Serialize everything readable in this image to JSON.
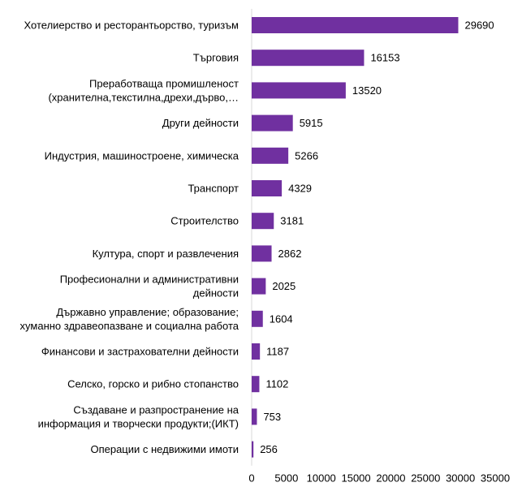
{
  "chart_data": {
    "type": "bar",
    "orientation": "horizontal",
    "categories": [
      [
        "Хотелиерство и ресторантьорство, туризъм"
      ],
      [
        "Търговия"
      ],
      [
        "Преработваща промишленост",
        "(хранителна,текстилна,дрехи,дърво,…"
      ],
      [
        "Други дейности"
      ],
      [
        "Индустрия, машиностроене, химическа"
      ],
      [
        "Транспорт"
      ],
      [
        "Строителство"
      ],
      [
        "Култура, спорт и развлечения"
      ],
      [
        "Професионални и административни",
        "дейности"
      ],
      [
        "Държавно управление; образование;",
        "хуманно здравеопазване и социална работа"
      ],
      [
        "Финансови и застрахователни дейности"
      ],
      [
        "Селско, горско и рибно стопанство"
      ],
      [
        "Създаване и разпространение на",
        "информация и творчески продукти;(ИКТ)"
      ],
      [
        "Операции с недвижими имоти"
      ]
    ],
    "values": [
      29690,
      16153,
      13520,
      5915,
      5266,
      4329,
      3181,
      2862,
      2025,
      1604,
      1187,
      1102,
      753,
      256
    ],
    "value_labels": [
      "29690",
      "16153",
      "13520",
      "5915",
      "5266",
      "4329",
      "3181",
      "2862",
      "2025",
      "1604",
      "1187",
      "1102",
      "753",
      "256"
    ],
    "x_ticks": [
      "0",
      "5000",
      "10000",
      "15000",
      "20000",
      "25000",
      "30000",
      "35000"
    ],
    "xlim": [
      0,
      35000
    ],
    "bar_color": "#7030A0",
    "axis_color": "#D9D9D9",
    "grid": false,
    "legend": false,
    "title": "",
    "xlabel": "",
    "ylabel": ""
  }
}
